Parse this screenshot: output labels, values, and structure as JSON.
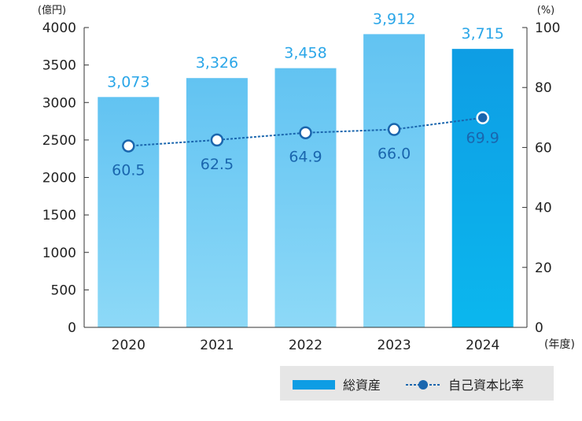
{
  "chart_data": {
    "type": "bar",
    "categories": [
      "2020",
      "2021",
      "2022",
      "2023",
      "2024"
    ],
    "x_unit": "(年度)",
    "series": [
      {
        "name": "総資産",
        "type": "bar",
        "axis": "left",
        "values": [
          3073,
          3326,
          3458,
          3912,
          3715
        ],
        "labels": [
          "3,073",
          "3,326",
          "3,458",
          "3,912",
          "3,715"
        ]
      },
      {
        "name": "自己資本比率",
        "type": "line",
        "axis": "right",
        "values": [
          60.5,
          62.5,
          64.9,
          66.0,
          69.9
        ],
        "labels": [
          "60.5",
          "62.5",
          "64.9",
          "66.0",
          "69.9"
        ]
      }
    ],
    "left_axis": {
      "unit": "(億円)",
      "ylim": [
        0,
        4000
      ],
      "ticks": [
        0,
        500,
        1000,
        1500,
        2000,
        2500,
        3000,
        3500,
        4000
      ],
      "tick_labels": [
        "0",
        "500",
        "1000",
        "1500",
        "2000",
        "2500",
        "3000",
        "3500",
        "4000"
      ]
    },
    "right_axis": {
      "unit": "(%)",
      "ylim": [
        0,
        100
      ],
      "ticks": [
        0,
        20,
        40,
        60,
        80,
        100
      ],
      "tick_labels": [
        "0",
        "20",
        "40",
        "60",
        "80",
        "100"
      ]
    },
    "legend": {
      "placement": "bottom-right",
      "items": [
        "総資産",
        "自己資本比率"
      ]
    },
    "grid": false,
    "colors": {
      "bar_top": "#62C3F2",
      "bar_bottom": "#8DD9F7",
      "bar_highlight_top": "#0E9DE4",
      "bar_highlight_bottom": "#0BB7EE",
      "bar_label": "#2AA6E8",
      "line": "#1A66AE",
      "ratio_label": "#1A66AE",
      "legend_bg": "#E6E6E6",
      "legend_bar": "#0E9DE4",
      "axis": "#333333"
    }
  }
}
